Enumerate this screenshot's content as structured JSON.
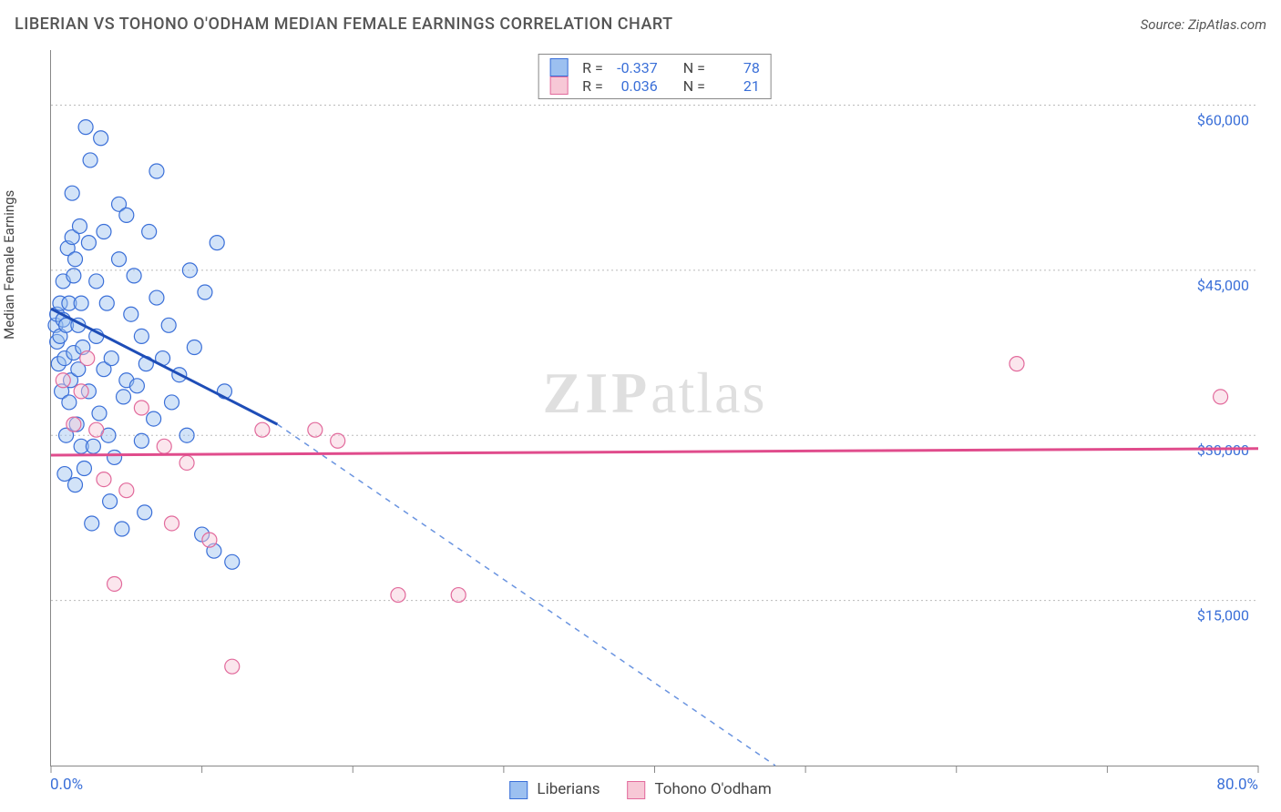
{
  "title": "LIBERIAN VS TOHONO O'ODHAM MEDIAN FEMALE EARNINGS CORRELATION CHART",
  "source": "Source: ZipAtlas.com",
  "ylabel": "Median Female Earnings",
  "x_axis": {
    "min_label": "0.0%",
    "max_label": "80.0%",
    "min": 0,
    "max": 80
  },
  "y_axis": {
    "min": 0,
    "max": 65000,
    "label_fontsize": 16,
    "label_color": "#3a6fd8",
    "ticks": [
      {
        "value": 15000,
        "label": "$15,000"
      },
      {
        "value": 30000,
        "label": "$30,000"
      },
      {
        "value": 45000,
        "label": "$45,000"
      },
      {
        "value": 60000,
        "label": "$60,000"
      }
    ]
  },
  "x_ticks": [
    0,
    10,
    20,
    30,
    40,
    50,
    60,
    70,
    80
  ],
  "legend": {
    "series1": "Liberians",
    "series2": "Tohono O'odham"
  },
  "correlation_box": {
    "row1": {
      "r_label": "R =",
      "r": "-0.337",
      "n_label": "N =",
      "n": "78"
    },
    "row2": {
      "r_label": "R =",
      "r": "0.036",
      "n_label": "N =",
      "n": "21"
    }
  },
  "watermark": {
    "zip": "ZIP",
    "atlas": "atlas"
  },
  "series": [
    {
      "name": "Liberians",
      "marker_color": "#9cc0f0",
      "marker_stroke": "#3a6fd8",
      "marker_radius": 8,
      "trend": {
        "solid_color": "#1e4db7",
        "dash_color": "#6a94e0",
        "x1": 0,
        "y1": 41500,
        "x_solid_end": 15,
        "y_solid_end": 31000,
        "x2": 48,
        "y2": 0
      },
      "points": [
        [
          0.3,
          40000
        ],
        [
          0.4,
          41000
        ],
        [
          0.4,
          38500
        ],
        [
          0.5,
          36500
        ],
        [
          0.6,
          42000
        ],
        [
          0.6,
          39000
        ],
        [
          0.7,
          34000
        ],
        [
          0.8,
          44000
        ],
        [
          0.8,
          40500
        ],
        [
          0.9,
          37000
        ],
        [
          1.0,
          40000
        ],
        [
          1.0,
          30000
        ],
        [
          1.1,
          47000
        ],
        [
          1.2,
          42000
        ],
        [
          1.2,
          33000
        ],
        [
          1.3,
          35000
        ],
        [
          1.4,
          48000
        ],
        [
          1.4,
          52000
        ],
        [
          1.5,
          37500
        ],
        [
          1.5,
          44500
        ],
        [
          1.6,
          46000
        ],
        [
          1.7,
          31000
        ],
        [
          1.8,
          36000
        ],
        [
          1.8,
          40000
        ],
        [
          1.9,
          49000
        ],
        [
          2.0,
          29000
        ],
        [
          2.0,
          42000
        ],
        [
          2.1,
          38000
        ],
        [
          2.2,
          27000
        ],
        [
          2.3,
          58000
        ],
        [
          2.5,
          34000
        ],
        [
          2.5,
          47500
        ],
        [
          2.6,
          55000
        ],
        [
          2.8,
          29000
        ],
        [
          3.0,
          39000
        ],
        [
          3.0,
          44000
        ],
        [
          3.2,
          32000
        ],
        [
          3.3,
          57000
        ],
        [
          3.5,
          48500
        ],
        [
          3.5,
          36000
        ],
        [
          3.7,
          42000
        ],
        [
          3.8,
          30000
        ],
        [
          4.0,
          37000
        ],
        [
          4.2,
          28000
        ],
        [
          4.5,
          46000
        ],
        [
          4.5,
          51000
        ],
        [
          4.8,
          33500
        ],
        [
          5.0,
          35000
        ],
        [
          5.0,
          50000
        ],
        [
          5.3,
          41000
        ],
        [
          5.5,
          44500
        ],
        [
          5.7,
          34500
        ],
        [
          6.0,
          39000
        ],
        [
          6.0,
          29500
        ],
        [
          6.3,
          36500
        ],
        [
          6.5,
          48500
        ],
        [
          6.8,
          31500
        ],
        [
          7.0,
          42500
        ],
        [
          7.0,
          54000
        ],
        [
          7.4,
          37000
        ],
        [
          7.8,
          40000
        ],
        [
          8.0,
          33000
        ],
        [
          8.5,
          35500
        ],
        [
          9.0,
          30000
        ],
        [
          9.2,
          45000
        ],
        [
          9.5,
          38000
        ],
        [
          10.0,
          21000
        ],
        [
          10.2,
          43000
        ],
        [
          10.8,
          19500
        ],
        [
          11.0,
          47500
        ],
        [
          11.5,
          34000
        ],
        [
          12.0,
          18500
        ],
        [
          6.2,
          23000
        ],
        [
          4.7,
          21500
        ],
        [
          3.9,
          24000
        ],
        [
          2.7,
          22000
        ],
        [
          1.6,
          25500
        ],
        [
          0.9,
          26500
        ]
      ]
    },
    {
      "name": "Tohono O'odham",
      "marker_color": "#f7c8d6",
      "marker_stroke": "#e26a9c",
      "marker_radius": 8,
      "trend": {
        "solid_color": "#e04c8c",
        "dash_color": "#e04c8c",
        "x1": 0,
        "y1": 28200,
        "x_solid_end": 80,
        "y_solid_end": 28800,
        "x2": 80,
        "y2": 28800
      },
      "points": [
        [
          0.8,
          35000
        ],
        [
          1.5,
          31000
        ],
        [
          2.0,
          34000
        ],
        [
          2.4,
          37000
        ],
        [
          3.0,
          30500
        ],
        [
          3.5,
          26000
        ],
        [
          4.2,
          16500
        ],
        [
          5.0,
          25000
        ],
        [
          6.0,
          32500
        ],
        [
          7.5,
          29000
        ],
        [
          8.0,
          22000
        ],
        [
          9.0,
          27500
        ],
        [
          10.5,
          20500
        ],
        [
          12.0,
          9000
        ],
        [
          14.0,
          30500
        ],
        [
          17.5,
          30500
        ],
        [
          23.0,
          15500
        ],
        [
          27.0,
          15500
        ],
        [
          64.0,
          36500
        ],
        [
          77.5,
          33500
        ],
        [
          19.0,
          29500
        ]
      ]
    }
  ],
  "style": {
    "background": "#ffffff",
    "grid_color": "#bbbbbb",
    "axis_color": "#888888",
    "title_fontsize": 18,
    "title_color": "#555555"
  }
}
